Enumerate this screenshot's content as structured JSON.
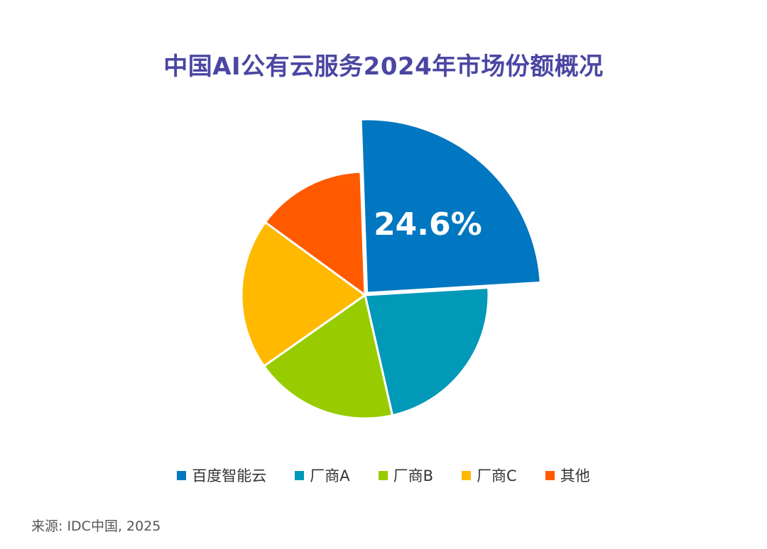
{
  "title": "中国AI公有云服务2024年市场份额概况",
  "source": "来源: IDC中国, 2025",
  "chart_data": {
    "type": "pie",
    "title": "中国AI公有云服务2024年市场份额概况",
    "labels": [
      "百度智能云",
      "厂商A",
      "厂商B",
      "厂商C",
      "其他"
    ],
    "values": [
      24.6,
      22.4,
      18.8,
      19.8,
      14.4
    ],
    "colors": [
      "#0077c0",
      "#0099b8",
      "#99cc00",
      "#ffb900",
      "#ff5a00"
    ],
    "data_labels": [
      "24.6%",
      "",
      "",
      "",
      ""
    ],
    "exploded": [
      "百度智能云"
    ],
    "start_angle_deg": -2,
    "legend_position": "bottom"
  }
}
